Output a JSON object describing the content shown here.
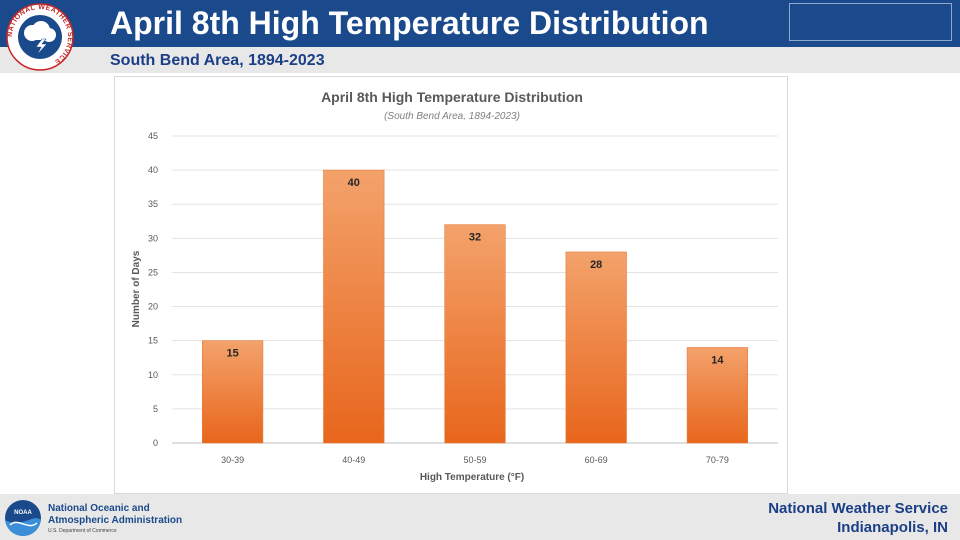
{
  "header": {
    "title": "April 8th High Temperature Distribution",
    "subtitle": "South Bend Area, 1894-2023",
    "logo_text": "NATIONAL WEATHER SERVICE"
  },
  "footer": {
    "org_line1": "National Oceanic and",
    "org_line2": "Atmospheric Administration",
    "dept": "U.S. Department of Commerce",
    "noaa_logo_text": "NOAA",
    "office_line1": "National Weather Service",
    "office_line2": "Indianapolis, IN"
  },
  "colors": {
    "header_bg": "#1b4a8c",
    "bar_top": "#f3a26b",
    "bar_bottom": "#e8661c",
    "text_dark": "#404040"
  },
  "chart_data": {
    "type": "bar",
    "title": "April 8th High Temperature Distribution",
    "subtitle": "(South Bend Area, 1894-2023)",
    "xlabel": "High Temperature (°F)",
    "ylabel": "Number of Days",
    "categories": [
      "30-39",
      "40-49",
      "50-59",
      "60-69",
      "70-79"
    ],
    "values": [
      15,
      40,
      32,
      28,
      14
    ],
    "ylim": [
      0,
      45
    ],
    "yticks": [
      0,
      5,
      10,
      15,
      20,
      25,
      30,
      35,
      40,
      45
    ],
    "grid": true,
    "data_labels": true,
    "legend": "none"
  }
}
